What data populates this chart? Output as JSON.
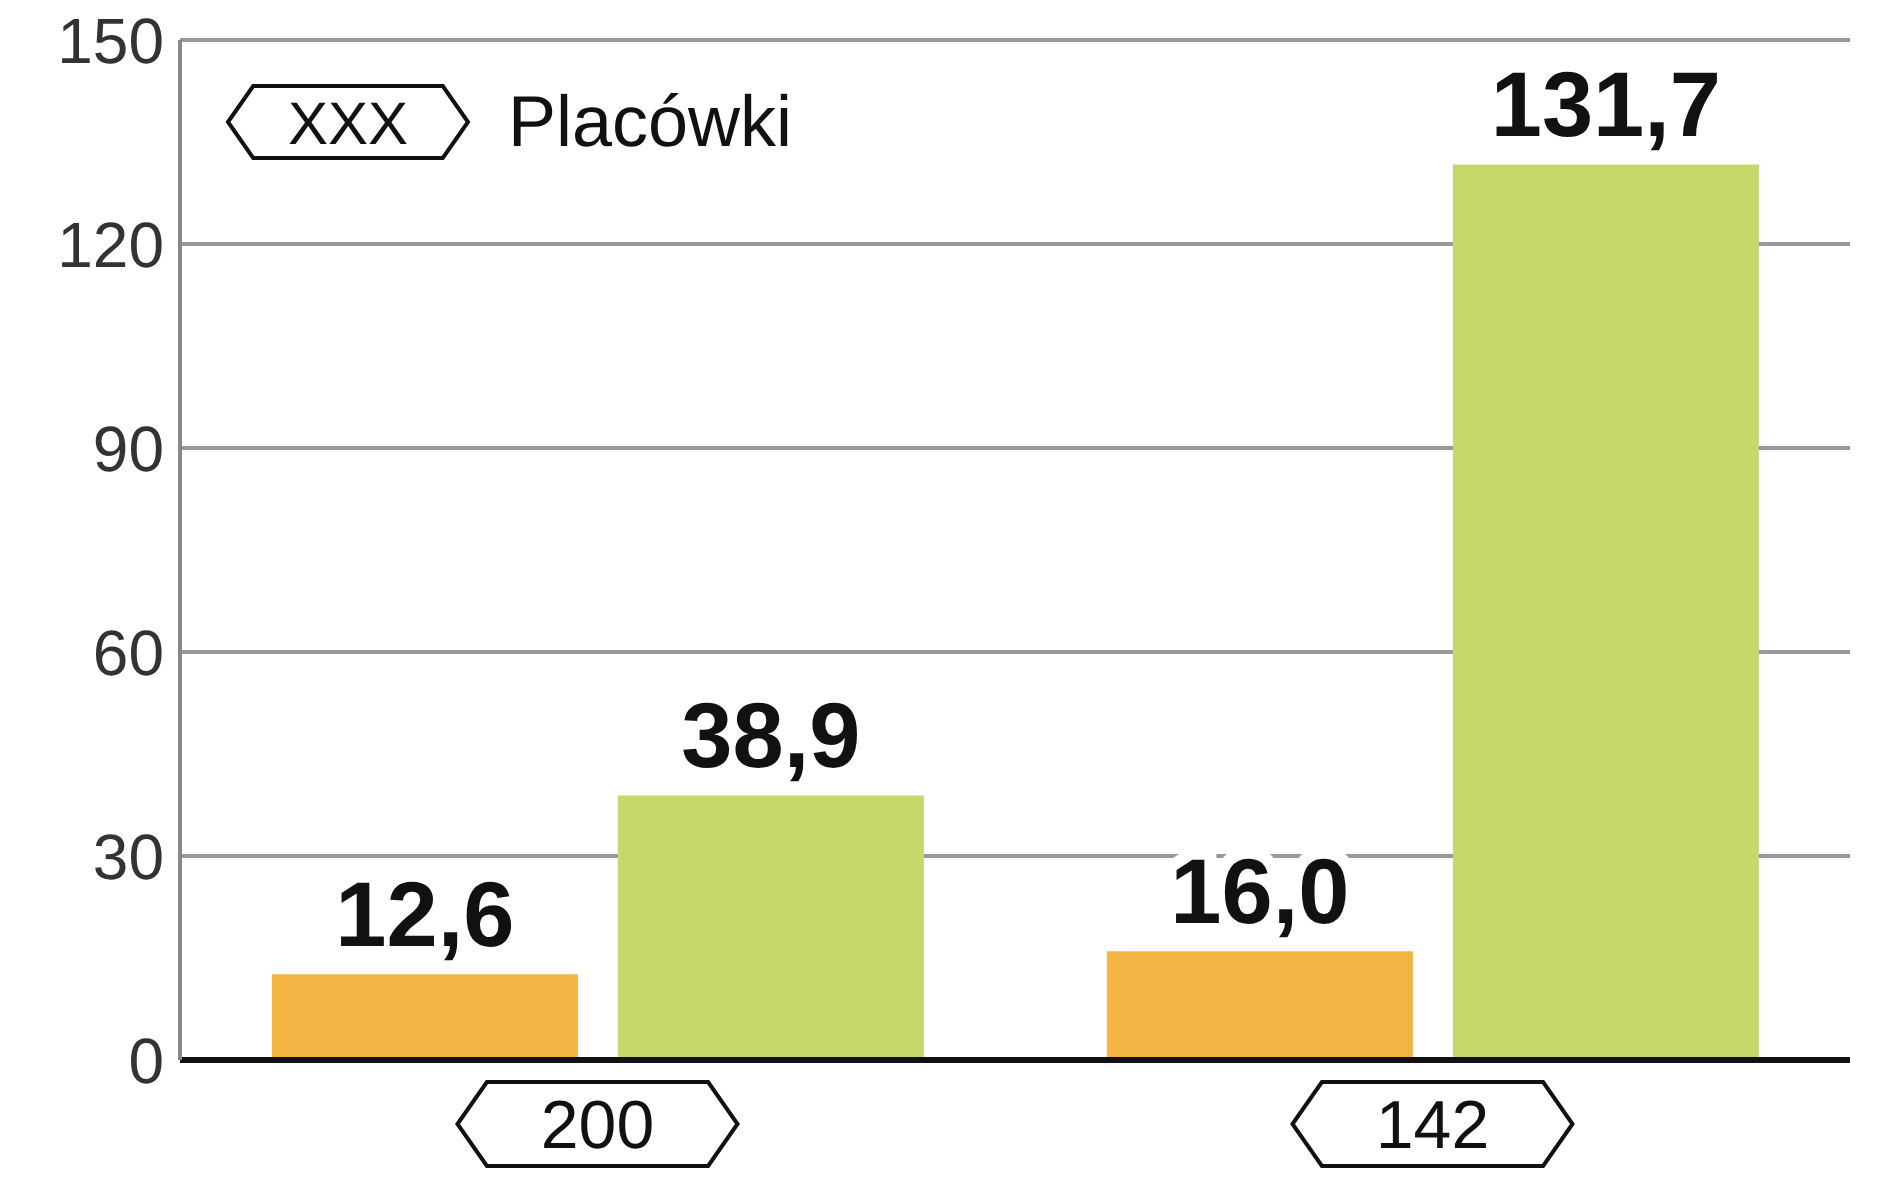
{
  "chart_data": {
    "type": "bar",
    "categories": [
      null,
      null
    ],
    "series": [
      {
        "color": "#f3b443",
        "values": [
          12.6,
          16.0
        ],
        "value_labels": [
          "12,6",
          "16,0"
        ]
      },
      {
        "color": "#c5d96a",
        "values": [
          38.9,
          131.7
        ],
        "value_labels": [
          "38,9",
          "131,7"
        ]
      }
    ],
    "ylim": [
      0,
      150
    ],
    "yticks": [
      0,
      30,
      60,
      90,
      120,
      150
    ],
    "grid": "y",
    "annotations": [
      "XXX",
      "Placówki",
      "200",
      "142"
    ]
  }
}
